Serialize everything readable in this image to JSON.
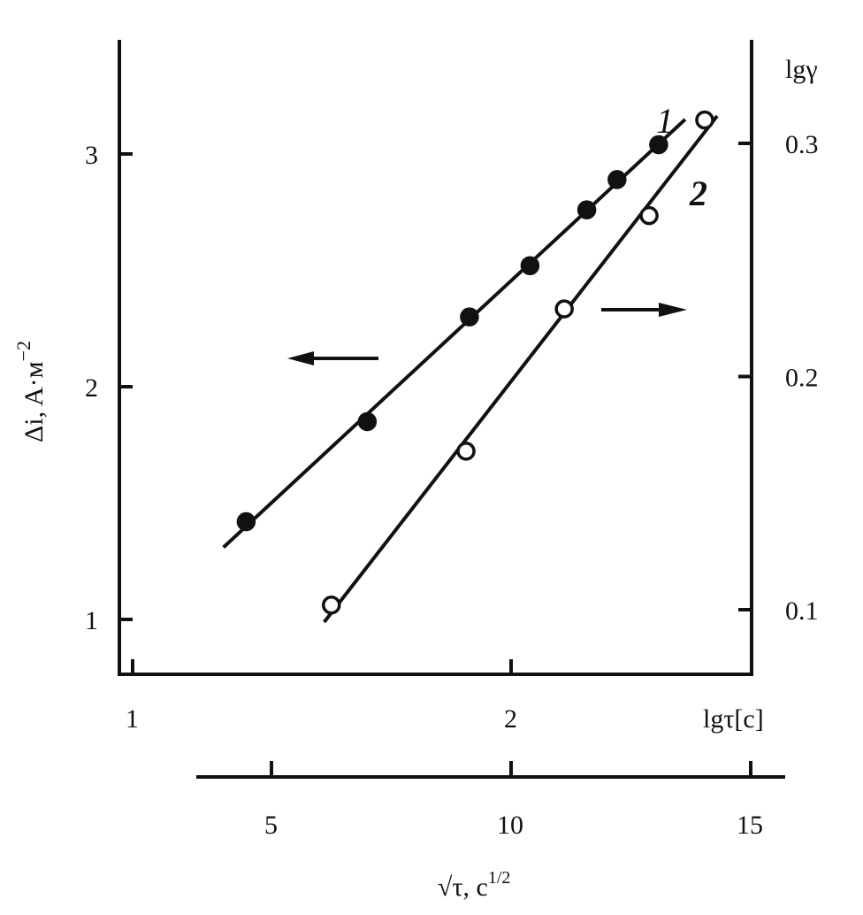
{
  "chart_data": {
    "type": "scatter",
    "left_axis": {
      "label": "Δi, A·м",
      "label_sup": "−2",
      "ticks": [
        1,
        2,
        3
      ],
      "range": [
        0.9,
        3.5
      ]
    },
    "right_axis": {
      "label": "lgγ",
      "ticks": [
        "0.1",
        "0.2",
        "0.3"
      ],
      "tick_values": [
        0.1,
        0.2,
        0.3
      ]
    },
    "bottom_axis": {
      "label": "lgτ[c]",
      "ticks": [
        1,
        2
      ]
    },
    "second_bottom_axis": {
      "label": "√τ, c",
      "label_sup": "1/2",
      "ticks": [
        5,
        10,
        15
      ]
    },
    "grid": false,
    "series": [
      {
        "name": "1",
        "marker": "filled-circle",
        "x_axis": "lgτ[c]",
        "y_axis": "Δi",
        "x": [
          1.3,
          1.62,
          1.89,
          2.05,
          2.2,
          2.28,
          2.39
        ],
        "y": [
          1.42,
          1.85,
          2.3,
          2.52,
          2.76,
          2.89,
          3.04
        ],
        "arrow": "left"
      },
      {
        "name": "2",
        "marker": "open-circle",
        "x_axis": "√τ",
        "y_axis": "lgγ",
        "x": [
          6.25,
          9.06,
          11.11,
          12.88,
          14.04
        ],
        "y": [
          0.102,
          0.168,
          0.229,
          0.269,
          0.31
        ],
        "arrow": "right"
      }
    ]
  }
}
